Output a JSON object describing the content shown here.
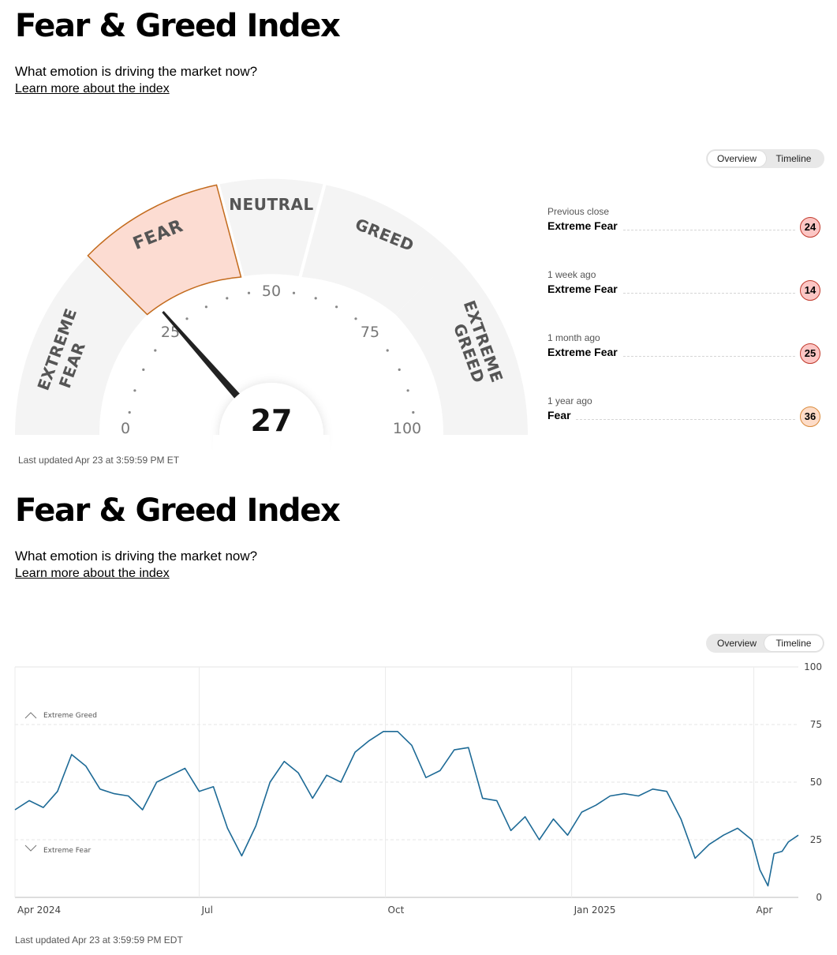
{
  "header": {
    "title": "Fear & Greed Index",
    "subtitle": "What emotion is driving the market now?",
    "learn_more": "Learn more about the index"
  },
  "toggle": {
    "overview": "Overview",
    "timeline": "Timeline"
  },
  "gauge": {
    "value": 27,
    "scale_labels": [
      "0",
      "25",
      "50",
      "75",
      "100"
    ],
    "segments": [
      {
        "label": "EXTREME FEAR",
        "range": [
          0,
          25
        ]
      },
      {
        "label": "FEAR",
        "range": [
          25,
          45
        ],
        "active": true
      },
      {
        "label": "NEUTRAL",
        "range": [
          45,
          55
        ]
      },
      {
        "label": "GREED",
        "range": [
          55,
          75
        ]
      },
      {
        "label": "EXTREME GREED",
        "range": [
          75,
          100
        ]
      }
    ],
    "updated": "Last updated Apr 23 at 3:59:59 PM ET"
  },
  "history": [
    {
      "label": "Previous close",
      "rating": "Extreme Fear",
      "value": "24"
    },
    {
      "label": "1 week ago",
      "rating": "Extreme Fear",
      "value": "14"
    },
    {
      "label": "1 month ago",
      "rating": "Extreme Fear",
      "value": "25"
    },
    {
      "label": "1 year ago",
      "rating": "Fear",
      "value": "36"
    }
  ],
  "timeline": {
    "updated": "Last updated Apr 23 at 3:59:59 PM EDT",
    "band_labels": {
      "greed": "Extreme Greed",
      "fear": "Extreme Fear"
    }
  },
  "colors": {
    "line": "#1d6a96",
    "fear_fill": "#fcdcd2",
    "fear_stroke": "#c36b1d",
    "segment": "#f4f4f4",
    "circle_extreme_fear": "#fcc6c4",
    "circle_fear": "#fddcc8"
  },
  "chart_data": {
    "type": "line",
    "title": "",
    "xlabel": "",
    "ylabel": "",
    "ylim": [
      0,
      100
    ],
    "yticks": [
      0,
      25,
      50,
      75,
      100
    ],
    "xtick_labels": [
      "Apr 2024",
      "Jul",
      "Oct",
      "Jan 2025",
      "Apr"
    ],
    "x_start": "2024-04-01",
    "x_end": "2025-04-23",
    "series": [
      {
        "x": [
          "2024-04-01",
          "2024-04-08",
          "2024-04-15",
          "2024-04-22",
          "2024-04-29",
          "2024-05-06",
          "2024-05-13",
          "2024-05-20",
          "2024-05-27",
          "2024-06-03",
          "2024-06-10",
          "2024-06-17",
          "2024-06-24",
          "2024-07-01",
          "2024-07-08",
          "2024-07-15",
          "2024-07-22",
          "2024-07-29",
          "2024-08-05",
          "2024-08-12",
          "2024-08-19",
          "2024-08-26",
          "2024-09-02",
          "2024-09-09",
          "2024-09-16",
          "2024-09-23",
          "2024-09-30",
          "2024-10-07",
          "2024-10-14",
          "2024-10-21",
          "2024-10-28",
          "2024-11-04",
          "2024-11-11",
          "2024-11-18",
          "2024-11-25",
          "2024-12-02",
          "2024-12-09",
          "2024-12-16",
          "2024-12-23",
          "2024-12-30",
          "2025-01-06",
          "2025-01-13",
          "2025-01-20",
          "2025-01-27",
          "2025-02-03",
          "2025-02-10",
          "2025-02-17",
          "2025-02-24",
          "2025-03-03",
          "2025-03-10",
          "2025-03-17",
          "2025-03-24",
          "2025-03-31",
          "2025-04-04",
          "2025-04-08",
          "2025-04-11",
          "2025-04-15",
          "2025-04-18",
          "2025-04-23"
        ],
        "values": [
          38,
          42,
          39,
          46,
          62,
          57,
          47,
          45,
          44,
          38,
          50,
          53,
          56,
          46,
          48,
          30,
          18,
          31,
          50,
          59,
          54,
          43,
          53,
          50,
          63,
          68,
          72,
          72,
          66,
          52,
          55,
          64,
          65,
          43,
          42,
          29,
          35,
          25,
          34,
          27,
          37,
          40,
          44,
          45,
          44,
          47,
          46,
          34,
          17,
          23,
          27,
          30,
          25,
          12,
          5,
          19,
          20,
          24,
          27
        ]
      }
    ]
  }
}
